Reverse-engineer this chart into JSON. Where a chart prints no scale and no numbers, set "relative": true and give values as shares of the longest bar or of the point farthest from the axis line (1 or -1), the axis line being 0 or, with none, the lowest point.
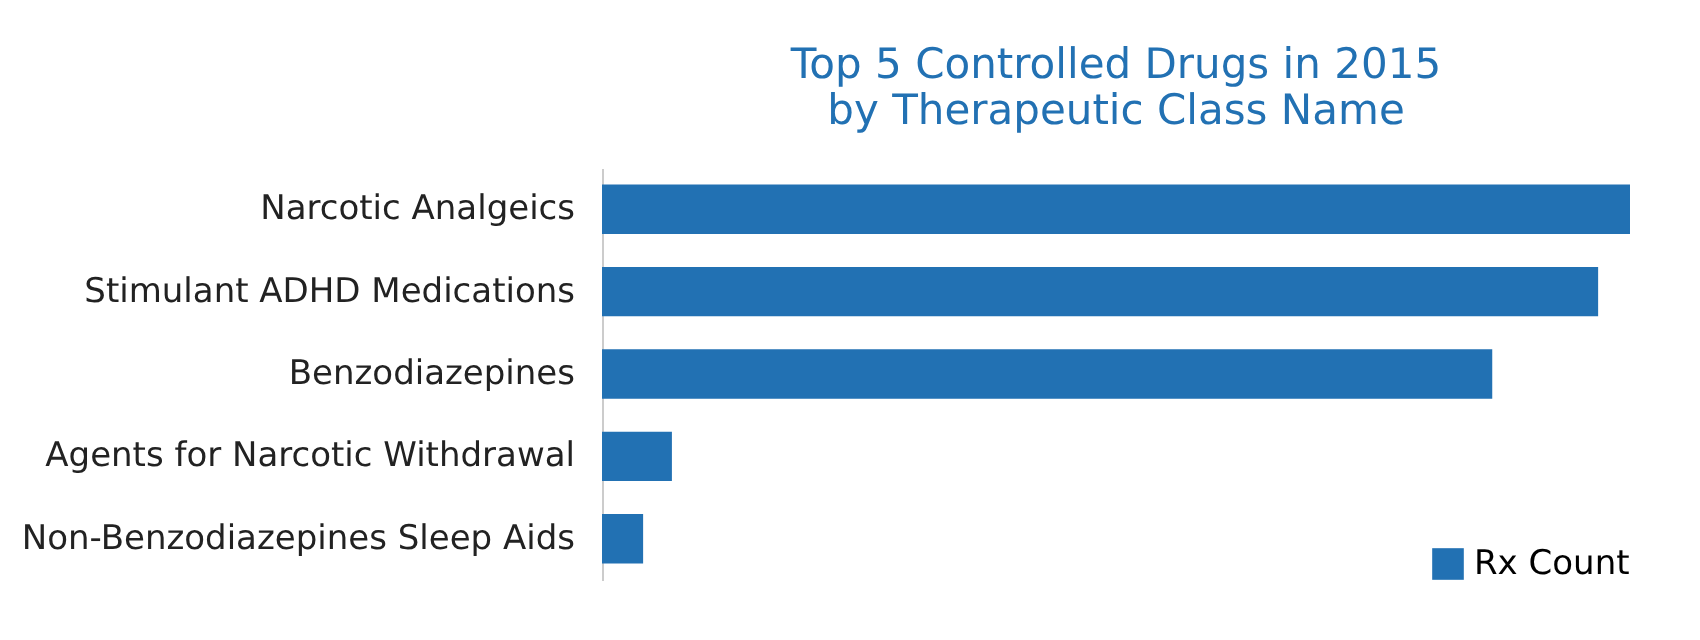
{
  "chart_data": {
    "type": "bar",
    "orientation": "horizontal",
    "relative": true,
    "title": "Top 5 Controlled Drugs in 2015\nby Therapeutic Class Name",
    "categories": [
      "Narcotic Analgeics",
      "Stimulant ADHD Medications",
      "Benzodiazepines",
      "Agents for Narcotic Withdrawal",
      "Non-Benzodiazepines Sleep Aids"
    ],
    "series": [
      {
        "name": "Rx Count",
        "color": "#2271b3",
        "values": [
          1,
          0.969,
          0.866,
          0.068,
          0.04
        ]
      }
    ],
    "legend": "bottom right"
  }
}
